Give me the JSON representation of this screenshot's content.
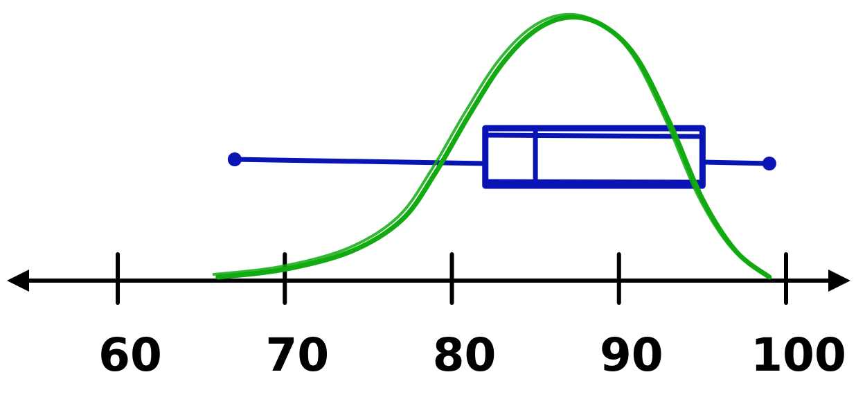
{
  "chart_data": {
    "type": "boxplot",
    "title": "",
    "xlabel": "",
    "ylabel": "",
    "x_range": [
      55,
      104
    ],
    "xticks": [
      60,
      70,
      80,
      90,
      100
    ],
    "tick_labels": [
      "60",
      "70",
      "80",
      "90",
      "100"
    ],
    "box": {
      "min": 67,
      "q1": 82,
      "median": 85,
      "q3": 95,
      "max": 99
    },
    "density_curve": {
      "x": [
        66,
        70,
        74,
        77,
        79,
        81,
        83,
        85,
        87,
        89,
        91,
        93,
        95,
        97,
        99
      ],
      "y": [
        0.0,
        0.03,
        0.1,
        0.22,
        0.4,
        0.62,
        0.82,
        0.95,
        1.0,
        0.97,
        0.85,
        0.6,
        0.3,
        0.1,
        0.0
      ]
    },
    "colors": {
      "axis": "#000000",
      "box": "#0a14b4",
      "curve": "#11aa11"
    },
    "grid": false,
    "legend": "none"
  }
}
